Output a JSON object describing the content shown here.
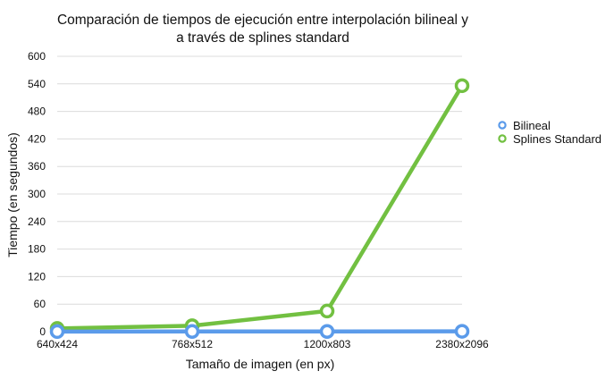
{
  "chart_data": {
    "type": "line",
    "title_lines": [
      "Comparación de tiempos de ejecución entre interpolación bilineal y",
      "a través de splines standard"
    ],
    "xlabel": "Tamaño de imagen (en px)",
    "ylabel": "Tiempo (en segundos)",
    "categories": [
      "640x424",
      "768x512",
      "1200x803",
      "2380x2096"
    ],
    "ylim": [
      0,
      600
    ],
    "yticks": [
      0,
      60,
      120,
      180,
      240,
      300,
      360,
      420,
      480,
      540,
      600
    ],
    "grid": true,
    "legend_position": "right",
    "series": [
      {
        "name": "Bilineal",
        "color": "#5b9bea",
        "values": [
          0.3,
          0.4,
          0.5,
          0.8
        ]
      },
      {
        "name": "Splines Standard",
        "color": "#72c041",
        "values": [
          7,
          13,
          45,
          536
        ]
      }
    ]
  }
}
